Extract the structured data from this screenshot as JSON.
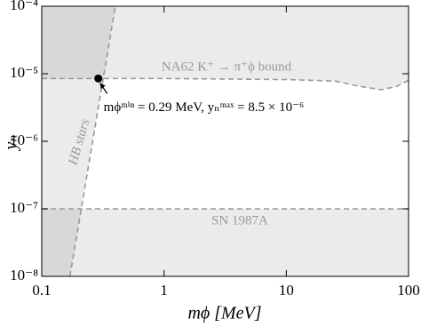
{
  "chart_data": {
    "type": "line",
    "x_label": "mϕ [MeV]",
    "y_label": "yₙ",
    "xscale": "log",
    "yscale": "log",
    "xlim": [
      0.1,
      100
    ],
    "ylim": [
      1e-08,
      0.0001
    ],
    "xticks": [
      0.1,
      1,
      10,
      100
    ],
    "yticks": [
      {
        "value": 1e-08,
        "label": "10⁻⁸"
      },
      {
        "value": 1e-07,
        "label": "10⁻⁷"
      },
      {
        "value": 1e-06,
        "label": "10⁻⁶"
      },
      {
        "value": 1e-05,
        "label": "10⁻⁵"
      },
      {
        "value": 0.0001,
        "label": "10⁻⁴"
      }
    ],
    "series": [
      {
        "name": "HB stars",
        "color": "#999999",
        "x": [
          0.17,
          0.4
        ],
        "values": [
          1e-08,
          0.0001
        ]
      },
      {
        "name": "NA62 K⁺ → π⁺ϕ bound",
        "color": "#999999",
        "x": [
          0.1,
          1,
          10,
          25,
          40,
          60,
          80,
          100
        ],
        "values": [
          8.5e-06,
          8.5e-06,
          8.2e-06,
          7.8e-06,
          6.5e-06,
          5.8e-06,
          6.5e-06,
          8e-06
        ]
      },
      {
        "name": "SN 1987A",
        "color": "#999999",
        "x": [
          0.1,
          100
        ],
        "values": [
          1e-07,
          1e-07
        ]
      }
    ],
    "point": {
      "x": 0.29,
      "y": 8.5e-06,
      "color": "#000000"
    },
    "annotation": "mϕᵐⁱⁿ = 0.29 MeV, yₙᵐᵃˣ = 8.5 × 10⁻⁶"
  }
}
